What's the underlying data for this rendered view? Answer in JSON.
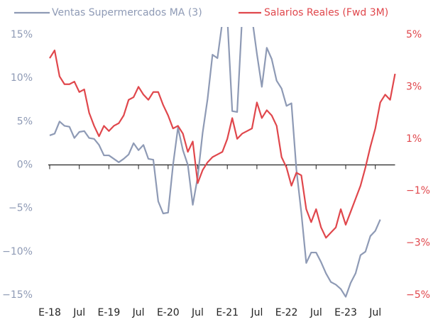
{
  "chart_data": {
    "type": "line",
    "categories": [
      "E-18",
      null,
      null,
      null,
      null,
      null,
      "Jul",
      null,
      null,
      null,
      null,
      null,
      "E-19",
      null,
      null,
      null,
      null,
      null,
      "Jul",
      null,
      null,
      null,
      null,
      null,
      "E-20",
      null,
      null,
      null,
      null,
      null,
      "Jul",
      null,
      null,
      null,
      null,
      null,
      "E-21",
      null,
      null,
      null,
      null,
      null,
      "Jul",
      null,
      null,
      null,
      null,
      null,
      "E-22",
      null,
      null,
      null,
      null,
      null,
      "Jul",
      null,
      null,
      null,
      null,
      null,
      "E-23",
      null,
      null,
      null,
      null,
      null,
      "Jul",
      null,
      null,
      null,
      null
    ],
    "series": [
      {
        "name": "Ventas Supermercados MA (3)",
        "color": "#8e9ab5",
        "axis": "y",
        "values": [
          3.4,
          3.6,
          5.0,
          4.5,
          4.4,
          3.1,
          3.8,
          3.9,
          3.1,
          3.0,
          2.3,
          1.1,
          1.1,
          0.7,
          0.3,
          0.7,
          1.2,
          2.5,
          1.7,
          2.3,
          0.7,
          0.6,
          -4.2,
          -5.6,
          -5.5,
          0.0,
          4.3,
          1.7,
          0.0,
          -4.6,
          -1.4,
          3.7,
          7.6,
          12.7,
          12.3,
          16.5,
          17.0,
          6.2,
          6.1,
          17.0,
          17.0,
          17.0,
          12.8,
          9.0,
          13.5,
          12.2,
          9.7,
          8.8,
          6.8,
          7.1,
          -0.5,
          -5.5,
          -11.3,
          -10.1,
          -10.1,
          -11.2,
          -12.5,
          -13.5,
          -13.8,
          -14.3,
          -15.2,
          -13.6,
          -12.5,
          -10.4,
          -10.0,
          -8.2,
          -7.6,
          -6.3,
          null,
          null,
          null
        ]
      },
      {
        "name": "Salarios Reales (Fwd 3M)",
        "color": "#e0474c",
        "axis": "y2",
        "values": [
          4.1,
          4.4,
          3.4,
          3.1,
          3.1,
          3.2,
          2.8,
          2.9,
          2.0,
          1.5,
          1.1,
          1.5,
          1.3,
          1.5,
          1.6,
          1.9,
          2.5,
          2.6,
          3.0,
          2.7,
          2.5,
          2.8,
          2.8,
          2.3,
          1.9,
          1.4,
          1.5,
          1.2,
          0.5,
          0.9,
          -0.7,
          -0.2,
          0.1,
          0.3,
          0.4,
          0.5,
          1.0,
          1.8,
          1.0,
          1.2,
          1.3,
          1.4,
          2.4,
          1.8,
          2.1,
          1.9,
          1.5,
          0.3,
          -0.1,
          -0.8,
          -0.3,
          -0.4,
          -1.7,
          -2.2,
          -1.7,
          -2.4,
          -2.8,
          -2.6,
          -2.4,
          -1.7,
          -2.3,
          -1.8,
          -1.3,
          -0.8,
          -0.1,
          0.7,
          1.4,
          2.4,
          2.7,
          2.5,
          3.5
        ]
      }
    ],
    "ylim": [
      -15,
      15
    ],
    "yticks": [
      {
        "value": 15,
        "label": "15%"
      },
      {
        "value": 10,
        "label": "10%"
      },
      {
        "value": 5,
        "label": "5%"
      },
      {
        "value": 0,
        "label": "0%"
      },
      {
        "value": -5,
        "label": "−5%"
      },
      {
        "value": -10,
        "label": "−10%"
      },
      {
        "value": -15,
        "label": "−15%"
      }
    ],
    "y2lim": [
      -5,
      5
    ],
    "y2ticks": [
      {
        "value": 5,
        "label": "5%"
      },
      {
        "value": 3,
        "label": "3%"
      },
      {
        "value": 1,
        "label": "1%"
      },
      {
        "value": -1,
        "label": "−1%"
      },
      {
        "value": -3,
        "label": "−3%"
      },
      {
        "value": -5,
        "label": "−5%"
      }
    ]
  }
}
